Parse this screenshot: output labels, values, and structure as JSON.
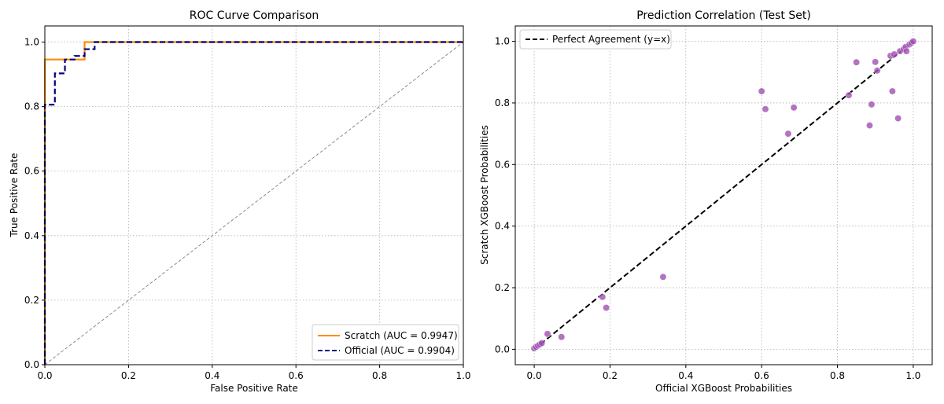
{
  "chart_data": [
    {
      "type": "line",
      "title": "ROC Curve Comparison",
      "xlabel": "False Positive Rate",
      "ylabel": "True Positive Rate",
      "xlim": [
        0,
        1
      ],
      "ylim": [
        0,
        1.05
      ],
      "x_ticks": [
        "0.0",
        "0.2",
        "0.4",
        "0.6",
        "0.8",
        "1.0"
      ],
      "y_ticks": [
        "0.0",
        "0.2",
        "0.4",
        "0.6",
        "0.8",
        "1.0"
      ],
      "grid": true,
      "legend_position": "lower-right",
      "series": [
        {
          "name": "Scratch (AUC = 0.9947)",
          "color": "#ff8c00",
          "style": "solid",
          "points": [
            [
              0,
              0
            ],
            [
              0,
              0.946
            ],
            [
              0.095,
              0.946
            ],
            [
              0.095,
              1.0
            ],
            [
              1.0,
              1.0
            ]
          ]
        },
        {
          "name": "Official (AUC = 0.9904)",
          "color": "#000080",
          "style": "dashed",
          "points": [
            [
              0,
              0
            ],
            [
              0,
              0.806
            ],
            [
              0.024,
              0.806
            ],
            [
              0.024,
              0.903
            ],
            [
              0.048,
              0.903
            ],
            [
              0.048,
              0.946
            ],
            [
              0.071,
              0.946
            ],
            [
              0.071,
              0.957
            ],
            [
              0.095,
              0.957
            ],
            [
              0.095,
              0.978
            ],
            [
              0.119,
              0.978
            ],
            [
              0.119,
              1.0
            ],
            [
              1.0,
              1.0
            ]
          ]
        },
        {
          "color": "#808080",
          "style": "diagonal",
          "points": [
            [
              0,
              0
            ],
            [
              1,
              1
            ]
          ]
        }
      ]
    },
    {
      "type": "scatter",
      "title": "Prediction Correlation (Test Set)",
      "xlabel": "Official XGBoost Probabilities",
      "ylabel": "Scratch XGBoost Probabilities",
      "xlim": [
        -0.05,
        1.05
      ],
      "ylim": [
        -0.05,
        1.05
      ],
      "x_ticks": [
        "0.0",
        "0.2",
        "0.4",
        "0.6",
        "0.8",
        "1.0"
      ],
      "y_ticks": [
        "0.0",
        "0.2",
        "0.4",
        "0.6",
        "0.8",
        "1.0"
      ],
      "grid": true,
      "legend_position": "top-left",
      "reference_line": {
        "name": "Perfect Agreement (y=x)",
        "color": "#000000",
        "points": [
          [
            0,
            0
          ],
          [
            1,
            1
          ]
        ]
      },
      "point_color": "#a050b0",
      "points": [
        [
          0.0,
          0.003
        ],
        [
          0.005,
          0.008
        ],
        [
          0.01,
          0.012
        ],
        [
          0.015,
          0.016
        ],
        [
          0.02,
          0.02
        ],
        [
          0.035,
          0.05
        ],
        [
          0.072,
          0.04
        ],
        [
          0.18,
          0.17
        ],
        [
          0.19,
          0.135
        ],
        [
          0.34,
          0.235
        ],
        [
          0.6,
          0.838
        ],
        [
          0.61,
          0.78
        ],
        [
          0.67,
          0.7
        ],
        [
          0.685,
          0.785
        ],
        [
          0.83,
          0.825
        ],
        [
          0.85,
          0.932
        ],
        [
          0.885,
          0.727
        ],
        [
          0.89,
          0.795
        ],
        [
          0.9,
          0.933
        ],
        [
          0.905,
          0.905
        ],
        [
          0.94,
          0.953
        ],
        [
          0.945,
          0.838
        ],
        [
          0.96,
          0.75
        ],
        [
          0.95,
          0.958
        ],
        [
          0.965,
          0.968
        ],
        [
          0.975,
          0.975
        ],
        [
          0.98,
          0.982
        ],
        [
          0.982,
          0.968
        ],
        [
          0.99,
          0.99
        ],
        [
          0.995,
          0.995
        ],
        [
          1.0,
          1.0
        ]
      ]
    }
  ]
}
